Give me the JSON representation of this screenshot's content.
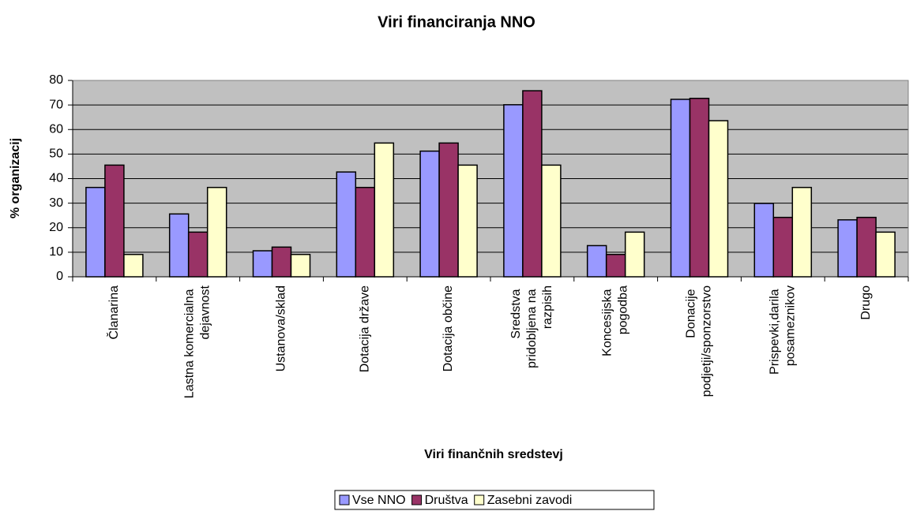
{
  "chart_data": {
    "type": "bar",
    "title": "Viri financiranja NNO",
    "x_label": "Viri finančnih sredstevj",
    "y_label": "% organizacij",
    "categories": [
      "Članarina",
      "Lastna komercialna dejavnost",
      "Ustanova/sklad",
      "Dotacija države",
      "Dotacija občine",
      "Sredstva pridobljena na razpisih",
      "Koncesijska pogodba",
      "Donacije podjetji/sponzorstvo",
      "Prispevki,darila posameznikov",
      "Drugo"
    ],
    "series": [
      {
        "name": "Vse NNO",
        "color": "#9999ff",
        "values": [
          36.4,
          25.6,
          10.6,
          42.7,
          51.2,
          70.1,
          12.7,
          72.3,
          29.9,
          23.2
        ]
      },
      {
        "name": "Društva",
        "color": "#993366",
        "values": [
          45.5,
          18.2,
          12.1,
          36.4,
          54.5,
          75.8,
          9.1,
          72.7,
          24.2,
          24.2
        ]
      },
      {
        "name": "Zasebni zavodi",
        "color": "#ffffcc",
        "values": [
          9.1,
          36.4,
          9.1,
          54.5,
          45.5,
          45.5,
          18.2,
          63.6,
          36.4,
          18.2
        ]
      }
    ],
    "ylim": [
      0,
      80
    ],
    "yticks": [
      0,
      10,
      20,
      30,
      40,
      50,
      60,
      70,
      80
    ],
    "grid": true,
    "legend": "bottom"
  }
}
